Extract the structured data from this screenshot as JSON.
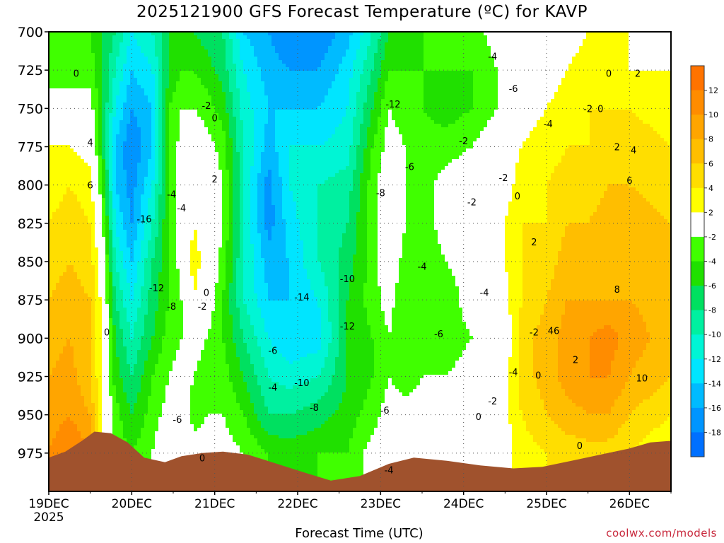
{
  "title": "2025121900 GFS Forecast Temperature (ºC) for KAVP",
  "xlabel": "Forecast Time (UTC)",
  "credit": "coolwx.com/models",
  "chart_data": {
    "type": "heatmap",
    "title": "2025121900 GFS Forecast Temperature (ºC) for KAVP",
    "xlabel": "Forecast Time (UTC)",
    "ylabel": "",
    "x_ticks": [
      "19DEC\n2025",
      "20DEC",
      "21DEC",
      "22DEC",
      "23DEC",
      "24DEC",
      "25DEC",
      "26DEC"
    ],
    "xlim": [
      0,
      7.5
    ],
    "y_ticks": [
      700,
      725,
      750,
      775,
      800,
      825,
      850,
      875,
      900,
      925,
      950,
      975
    ],
    "ylim": [
      700,
      1000
    ],
    "y_inverted": true,
    "grid": true,
    "colorbar": {
      "labels": [
        12,
        10,
        8,
        6,
        4,
        2,
        -2,
        -4,
        -6,
        -8,
        -10,
        -12,
        -14,
        -16,
        -18
      ],
      "colors": [
        "#ff7300",
        "#ff8c00",
        "#ffa500",
        "#ffbe00",
        "#ffde00",
        "#ffff00",
        "#ffffff",
        "#40ff00",
        "#20e000",
        "#00e060",
        "#00f0a0",
        "#00f5d5",
        "#00e5ff",
        "#00bbff",
        "#0095ff",
        "#0070ff"
      ]
    },
    "columns": [
      {
        "t": 0.0,
        "v": [
          -3,
          -2,
          -2,
          2,
          3,
          4,
          5,
          6,
          7,
          8,
          9,
          10
        ]
      },
      {
        "t": 0.25,
        "v": [
          -4,
          -3,
          -1,
          2,
          4,
          5,
          6,
          7,
          8,
          9,
          10,
          12
        ]
      },
      {
        "t": 0.5,
        "v": [
          -4,
          -3,
          -1,
          1,
          3,
          4,
          5,
          6,
          6,
          6,
          8,
          10
        ]
      },
      {
        "t": 0.65,
        "v": [
          -6,
          -6,
          -6,
          -6,
          -4,
          -2,
          0,
          1,
          2,
          2,
          1,
          null
        ]
      },
      {
        "t": 0.8,
        "v": [
          -8,
          -10,
          -12,
          -14,
          -14,
          -12,
          -10,
          -8,
          -6,
          -5,
          -3,
          null
        ]
      },
      {
        "t": 1.0,
        "v": [
          -12,
          -14,
          -16,
          -18,
          -17,
          -16,
          -14,
          -12,
          -10,
          -8,
          -6,
          -4
        ]
      },
      {
        "t": 1.25,
        "v": [
          -10,
          -12,
          -14,
          -14,
          -12,
          -10,
          -8,
          -7,
          -6,
          -4,
          -3,
          -2
        ]
      },
      {
        "t": 1.45,
        "v": [
          -6,
          -6,
          -4,
          -4,
          -4,
          -4,
          -4,
          -4,
          -3,
          -2,
          -1,
          1
        ]
      },
      {
        "t": 1.6,
        "v": [
          -6,
          -4,
          -2,
          -1,
          0,
          0,
          -1,
          -2,
          -2,
          -1,
          0,
          1
        ]
      },
      {
        "t": 1.75,
        "v": [
          -6,
          -4,
          -2,
          0,
          1,
          2,
          3,
          2,
          -1,
          -2,
          -3,
          -1
        ]
      },
      {
        "t": 1.9,
        "v": [
          -7,
          -5,
          -3,
          -1,
          1,
          1,
          1,
          0,
          -2,
          -3,
          -2,
          -1
        ]
      },
      {
        "t": 2.1,
        "v": [
          -8,
          -7,
          -5,
          -3,
          -2,
          -2,
          -3,
          -4,
          -4,
          -3,
          -2,
          -1
        ]
      },
      {
        "t": 2.35,
        "v": [
          -14,
          -12,
          -11,
          -10,
          -10,
          -10,
          -10,
          -10,
          -8,
          -6,
          -4,
          -2
        ]
      },
      {
        "t": 2.65,
        "v": [
          -16,
          -15,
          -14,
          -15,
          -17,
          -17,
          -15,
          -14,
          -12,
          -10,
          -8,
          -4
        ]
      },
      {
        "t": 2.9,
        "v": [
          -18,
          -16,
          -14,
          -12,
          -12,
          -13,
          -14,
          -14,
          -14,
          -11,
          -8,
          -5
        ]
      },
      {
        "t": 3.25,
        "v": [
          -18,
          -16,
          -14,
          -12,
          -10,
          -10,
          -10,
          -12,
          -13,
          -10,
          -7,
          -4
        ]
      },
      {
        "t": 3.6,
        "v": [
          -15,
          -13,
          -12,
          -11,
          -9,
          -8,
          -7,
          -6,
          -6,
          -6,
          -5,
          -4
        ]
      },
      {
        "t": 3.9,
        "v": [
          -10,
          -8,
          -6,
          -4,
          -3,
          -3,
          -3,
          -3,
          -4,
          -4,
          -3,
          -1
        ]
      },
      {
        "t": 4.1,
        "v": [
          -6,
          -4,
          -2,
          -1,
          0,
          1,
          0,
          -1,
          -2,
          -2,
          -1,
          0
        ]
      },
      {
        "t": 4.3,
        "v": [
          -5,
          -4,
          -3,
          -2,
          -2,
          -2,
          -3,
          -4,
          -4,
          -3,
          -1,
          0
        ]
      },
      {
        "t": 4.5,
        "v": [
          -4,
          -4,
          -4,
          -3,
          -3,
          -3,
          -3,
          -3,
          -3,
          -2,
          -1,
          0
        ]
      },
      {
        "t": 4.8,
        "v": [
          -3,
          -4,
          -5,
          -3,
          -1,
          -1,
          -2,
          -3,
          -3,
          -2,
          -1,
          0
        ]
      },
      {
        "t": 5.1,
        "v": [
          -3,
          -4,
          -4,
          -2,
          0,
          0,
          -1,
          -1,
          -2,
          -1,
          0,
          0
        ]
      },
      {
        "t": 5.4,
        "v": [
          -1,
          -2,
          -2,
          0,
          0,
          1,
          1,
          0,
          -2,
          -1,
          0,
          0
        ]
      },
      {
        "t": 5.7,
        "v": [
          0,
          0,
          1,
          2,
          3,
          4,
          4,
          4,
          5,
          5,
          4,
          3
        ]
      },
      {
        "t": 6.0,
        "v": [
          0,
          1,
          2,
          3,
          4,
          4,
          5,
          6,
          7,
          7,
          6,
          4
        ]
      },
      {
        "t": 6.25,
        "v": [
          1,
          2,
          3,
          4,
          5,
          6,
          7,
          8,
          9,
          9,
          7,
          5
        ]
      },
      {
        "t": 6.5,
        "v": [
          2,
          3,
          4,
          4,
          5,
          6,
          7,
          8,
          10,
          10,
          8,
          5
        ]
      },
      {
        "t": 6.75,
        "v": [
          2,
          3,
          4,
          5,
          6,
          7,
          8,
          8,
          11,
          10,
          8,
          5
        ]
      },
      {
        "t": 7.0,
        "v": [
          2,
          2,
          4,
          5,
          6,
          7,
          7,
          8,
          9,
          8,
          6,
          4
        ]
      },
      {
        "t": 7.5,
        "v": [
          1,
          2,
          3,
          4,
          5,
          6,
          6,
          7,
          7,
          6,
          4,
          2
        ]
      }
    ],
    "terrain": [
      {
        "t": 0.0,
        "p": 978
      },
      {
        "t": 0.2,
        "p": 974
      },
      {
        "t": 0.4,
        "p": 967
      },
      {
        "t": 0.55,
        "p": 961
      },
      {
        "t": 0.75,
        "p": 962
      },
      {
        "t": 0.95,
        "p": 968
      },
      {
        "t": 1.15,
        "p": 978
      },
      {
        "t": 1.4,
        "p": 981
      },
      {
        "t": 1.6,
        "p": 977
      },
      {
        "t": 1.85,
        "p": 975
      },
      {
        "t": 2.1,
        "p": 974
      },
      {
        "t": 2.4,
        "p": 976
      },
      {
        "t": 2.75,
        "p": 982
      },
      {
        "t": 3.1,
        "p": 988
      },
      {
        "t": 3.4,
        "p": 993
      },
      {
        "t": 3.75,
        "p": 990
      },
      {
        "t": 4.1,
        "p": 982
      },
      {
        "t": 4.4,
        "p": 978
      },
      {
        "t": 4.8,
        "p": 980
      },
      {
        "t": 5.2,
        "p": 983
      },
      {
        "t": 5.6,
        "p": 985
      },
      {
        "t": 5.95,
        "p": 984
      },
      {
        "t": 6.3,
        "p": 980
      },
      {
        "t": 6.65,
        "p": 976
      },
      {
        "t": 7.0,
        "p": 972
      },
      {
        "t": 7.25,
        "p": 968
      },
      {
        "t": 7.5,
        "p": 967
      }
    ],
    "contour_labels": [
      {
        "t": 0.33,
        "p": 727,
        "text": "0"
      },
      {
        "t": 0.5,
        "p": 772,
        "text": "4"
      },
      {
        "t": 0.5,
        "p": 800,
        "text": "6"
      },
      {
        "t": 0.7,
        "p": 896,
        "text": "0"
      },
      {
        "t": 1.15,
        "p": 822,
        "text": "-16"
      },
      {
        "t": 1.3,
        "p": 867,
        "text": "-12"
      },
      {
        "t": 1.48,
        "p": 806,
        "text": "-4"
      },
      {
        "t": 1.6,
        "p": 815,
        "text": "-4"
      },
      {
        "t": 1.48,
        "p": 879,
        "text": "-8"
      },
      {
        "t": 1.55,
        "p": 953,
        "text": "-6"
      },
      {
        "t": 1.9,
        "p": 748,
        "text": "-2"
      },
      {
        "t": 2.0,
        "p": 756,
        "text": "0"
      },
      {
        "t": 2.0,
        "p": 796,
        "text": "2"
      },
      {
        "t": 1.9,
        "p": 870,
        "text": "0"
      },
      {
        "t": 1.85,
        "p": 879,
        "text": "-2"
      },
      {
        "t": 1.85,
        "p": 978,
        "text": "0"
      },
      {
        "t": 2.7,
        "p": 908,
        "text": "-6"
      },
      {
        "t": 2.7,
        "p": 932,
        "text": "-4"
      },
      {
        "t": 3.05,
        "p": 873,
        "text": "-14"
      },
      {
        "t": 3.05,
        "p": 929,
        "text": "-10"
      },
      {
        "t": 3.2,
        "p": 945,
        "text": "-8"
      },
      {
        "t": 3.6,
        "p": 861,
        "text": "-10"
      },
      {
        "t": 3.6,
        "p": 892,
        "text": "-12"
      },
      {
        "t": 4.0,
        "p": 805,
        "text": "-8"
      },
      {
        "t": 4.15,
        "p": 747,
        "text": "-12"
      },
      {
        "t": 4.35,
        "p": 788,
        "text": "-6"
      },
      {
        "t": 4.5,
        "p": 853,
        "text": "-4"
      },
      {
        "t": 4.7,
        "p": 897,
        "text": "-6"
      },
      {
        "t": 4.05,
        "p": 947,
        "text": "-6"
      },
      {
        "t": 4.1,
        "p": 986,
        "text": "-4"
      },
      {
        "t": 5.35,
        "p": 716,
        "text": "-4"
      },
      {
        "t": 5.6,
        "p": 737,
        "text": "-6"
      },
      {
        "t": 6.02,
        "p": 760,
        "text": "-4"
      },
      {
        "t": 6.5,
        "p": 750,
        "text": "-2"
      },
      {
        "t": 6.65,
        "p": 750,
        "text": "0"
      },
      {
        "t": 6.75,
        "p": 727,
        "text": "0"
      },
      {
        "t": 7.1,
        "p": 727,
        "text": "2"
      },
      {
        "t": 5.0,
        "p": 771,
        "text": "-2"
      },
      {
        "t": 5.48,
        "p": 795,
        "text": "-2"
      },
      {
        "t": 5.1,
        "p": 811,
        "text": "-2"
      },
      {
        "t": 5.65,
        "p": 807,
        "text": "0"
      },
      {
        "t": 5.25,
        "p": 870,
        "text": "-4"
      },
      {
        "t": 5.85,
        "p": 896,
        "text": "-2"
      },
      {
        "t": 5.35,
        "p": 941,
        "text": "-2"
      },
      {
        "t": 5.6,
        "p": 922,
        "text": "-4"
      },
      {
        "t": 5.9,
        "p": 924,
        "text": "0"
      },
      {
        "t": 5.18,
        "p": 951,
        "text": "0"
      },
      {
        "t": 6.4,
        "p": 970,
        "text": "0"
      },
      {
        "t": 5.85,
        "p": 837,
        "text": "2"
      },
      {
        "t": 6.05,
        "p": 895,
        "text": "4"
      },
      {
        "t": 6.12,
        "p": 895,
        "text": "6"
      },
      {
        "t": 6.35,
        "p": 914,
        "text": "2"
      },
      {
        "t": 6.85,
        "p": 775,
        "text": "2"
      },
      {
        "t": 7.05,
        "p": 777,
        "text": "4"
      },
      {
        "t": 7.0,
        "p": 797,
        "text": "6"
      },
      {
        "t": 6.85,
        "p": 868,
        "text": "8"
      },
      {
        "t": 7.15,
        "p": 926,
        "text": "10"
      }
    ]
  }
}
